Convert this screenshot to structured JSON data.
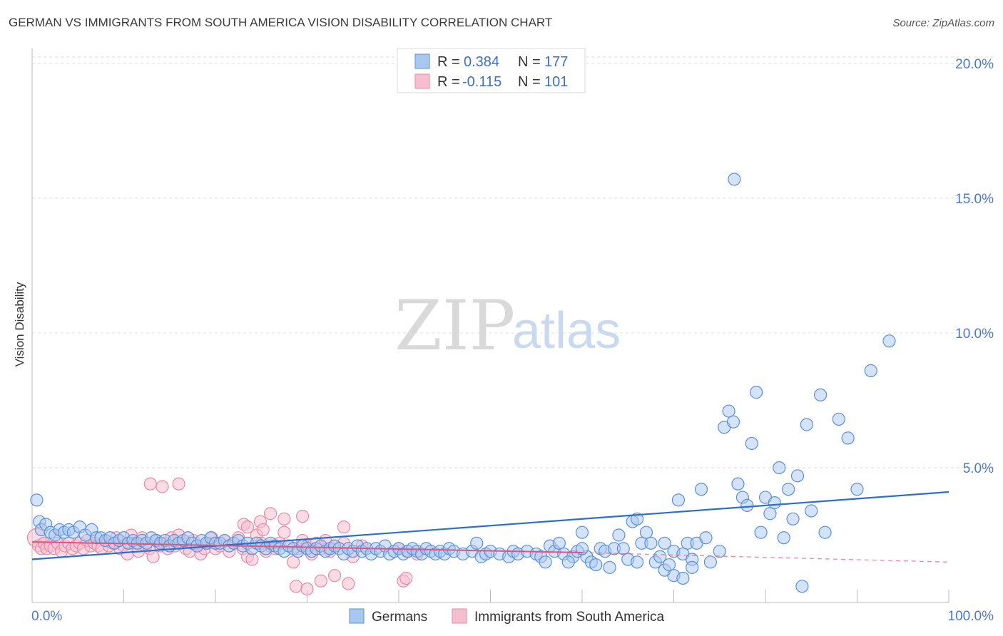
{
  "header": {
    "title": "GERMAN VS IMMIGRANTS FROM SOUTH AMERICA VISION DISABILITY CORRELATION CHART",
    "source": "Source: ZipAtlas.com"
  },
  "watermark": {
    "zip": "ZIP",
    "atlas": "atlas"
  },
  "legend_top": [
    {
      "r_label": "R =",
      "r_value": "0.384",
      "n_label": "N =",
      "n_value": "177"
    },
    {
      "r_label": "R =",
      "r_value": "-0.115",
      "n_label": "N =",
      "n_value": "101"
    }
  ],
  "legend_bottom": [
    "Germans",
    "Immigrants from South America"
  ],
  "colors": {
    "german_fill": "#a9c8f0",
    "german_stroke": "#5b8fd8",
    "german_line": "#2a6fcf",
    "sa_fill": "#f6bfd0",
    "sa_stroke": "#e58aa8",
    "sa_line": "#e0557f",
    "grid": "#dcdcdc"
  },
  "chart_data": {
    "type": "scatter",
    "title": "GERMAN VS IMMIGRANTS FROM SOUTH AMERICA VISION DISABILITY CORRELATION CHART",
    "xlabel": "",
    "ylabel": "Vision Disability",
    "xlim": [
      0,
      100
    ],
    "ylim": [
      0,
      20.5
    ],
    "x_tick_labels": [
      "0.0%",
      "100.0%"
    ],
    "y_ticks": [
      5,
      10,
      15,
      20
    ],
    "y_tick_labels": [
      "5.0%",
      "10.0%",
      "15.0%",
      "20.0%"
    ],
    "grid": true,
    "legend_position": "top-center",
    "series": [
      {
        "name": "Germans",
        "r": 0.384,
        "n": 177,
        "trend": {
          "x": [
            0,
            100
          ],
          "y": [
            1.6,
            4.1
          ]
        },
        "points": [
          [
            0.5,
            3.8
          ],
          [
            0.8,
            3.0
          ],
          [
            1.0,
            2.7
          ],
          [
            1.5,
            2.9
          ],
          [
            2,
            2.6
          ],
          [
            2.5,
            2.5
          ],
          [
            3,
            2.7
          ],
          [
            3.5,
            2.6
          ],
          [
            4,
            2.7
          ],
          [
            4.5,
            2.6
          ],
          [
            5.2,
            2.8
          ],
          [
            5.8,
            2.5
          ],
          [
            6.5,
            2.7
          ],
          [
            7.0,
            2.4
          ],
          [
            7.5,
            2.4
          ],
          [
            8,
            2.3
          ],
          [
            8.5,
            2.4
          ],
          [
            9,
            2.2
          ],
          [
            9.5,
            2.3
          ],
          [
            10,
            2.4
          ],
          [
            10.5,
            2.2
          ],
          [
            11,
            2.3
          ],
          [
            11.5,
            2.2
          ],
          [
            12,
            2.3
          ],
          [
            12.5,
            2.2
          ],
          [
            13,
            2.4
          ],
          [
            13.5,
            2.3
          ],
          [
            14,
            2.2
          ],
          [
            14.5,
            2.3
          ],
          [
            15,
            2.1
          ],
          [
            15.5,
            2.3
          ],
          [
            16,
            2.2
          ],
          [
            16.5,
            2.3
          ],
          [
            17,
            2.4
          ],
          [
            17.5,
            2.2
          ],
          [
            18,
            2.1
          ],
          [
            18.5,
            2.3
          ],
          [
            19,
            2.2
          ],
          [
            19.5,
            2.4
          ],
          [
            20,
            2.2
          ],
          [
            20.5,
            2.2
          ],
          [
            21,
            2.3
          ],
          [
            21.5,
            2.1
          ],
          [
            22,
            2.2
          ],
          [
            22.5,
            2.3
          ],
          [
            23,
            2.1
          ],
          [
            23.5,
            2.2
          ],
          [
            24,
            2.0
          ],
          [
            24.5,
            2.2
          ],
          [
            25,
            2.1
          ],
          [
            25.5,
            2.0
          ],
          [
            26,
            2.2
          ],
          [
            26.5,
            2.1
          ],
          [
            27,
            2.0
          ],
          [
            27.5,
            1.9
          ],
          [
            28,
            2.1
          ],
          [
            28.5,
            2.0
          ],
          [
            29,
            1.9
          ],
          [
            29.5,
            2.1
          ],
          [
            30,
            2.0
          ],
          [
            30.5,
            1.9
          ],
          [
            31,
            2.0
          ],
          [
            31.5,
            2.1
          ],
          [
            32,
            1.9
          ],
          [
            32.5,
            2.0
          ],
          [
            33,
            2.1
          ],
          [
            33.5,
            2.0
          ],
          [
            34,
            1.8
          ],
          [
            34.5,
            2.0
          ],
          [
            35,
            1.9
          ],
          [
            35.5,
            2.1
          ],
          [
            36,
            1.9
          ],
          [
            36.5,
            2.0
          ],
          [
            37,
            1.8
          ],
          [
            37.5,
            2.0
          ],
          [
            38,
            1.9
          ],
          [
            38.5,
            2.1
          ],
          [
            39,
            1.8
          ],
          [
            39.5,
            1.9
          ],
          [
            40,
            2.0
          ],
          [
            40.5,
            1.8
          ],
          [
            41,
            1.9
          ],
          [
            41.5,
            2.0
          ],
          [
            42,
            1.9
          ],
          [
            42.5,
            1.8
          ],
          [
            43,
            2.0
          ],
          [
            43.5,
            1.9
          ],
          [
            44,
            1.8
          ],
          [
            44.5,
            1.9
          ],
          [
            45,
            1.8
          ],
          [
            45.5,
            2.0
          ],
          [
            46,
            1.9
          ],
          [
            47,
            1.8
          ],
          [
            48,
            1.9
          ],
          [
            48.5,
            2.2
          ],
          [
            49,
            1.7
          ],
          [
            49.5,
            1.8
          ],
          [
            50,
            1.9
          ],
          [
            51,
            1.8
          ],
          [
            52,
            1.7
          ],
          [
            52.5,
            1.9
          ],
          [
            53,
            1.8
          ],
          [
            54,
            1.9
          ],
          [
            55,
            1.8
          ],
          [
            55.5,
            1.7
          ],
          [
            56,
            1.5
          ],
          [
            56.5,
            2.1
          ],
          [
            57,
            1.9
          ],
          [
            57.5,
            2.2
          ],
          [
            58,
            1.8
          ],
          [
            59,
            1.7
          ],
          [
            59.5,
            1.9
          ],
          [
            60,
            2.6
          ],
          [
            60.5,
            1.7
          ],
          [
            61,
            1.5
          ],
          [
            61.5,
            1.4
          ],
          [
            62,
            2.0
          ],
          [
            62.5,
            1.9
          ],
          [
            63,
            1.3
          ],
          [
            63.5,
            2.0
          ],
          [
            64,
            2.5
          ],
          [
            64.5,
            2.0
          ],
          [
            65,
            1.6
          ],
          [
            65.5,
            3.0
          ],
          [
            66,
            3.1
          ],
          [
            66.5,
            2.2
          ],
          [
            67,
            2.6
          ],
          [
            68,
            1.5
          ],
          [
            68.5,
            1.7
          ],
          [
            69,
            1.2
          ],
          [
            69.5,
            1.4
          ],
          [
            70,
            1.9
          ],
          [
            70.5,
            3.8
          ],
          [
            71,
            1.8
          ],
          [
            71.5,
            2.2
          ],
          [
            72,
            1.6
          ],
          [
            72.5,
            2.2
          ],
          [
            73,
            4.2
          ],
          [
            73.5,
            2.4
          ],
          [
            74,
            1.5
          ],
          [
            75,
            1.9
          ],
          [
            75.5,
            6.5
          ],
          [
            76,
            7.1
          ],
          [
            76.5,
            6.7
          ],
          [
            77,
            4.4
          ],
          [
            77.5,
            3.9
          ],
          [
            78,
            3.6
          ],
          [
            78.5,
            5.9
          ],
          [
            79,
            7.8
          ],
          [
            79.5,
            2.6
          ],
          [
            80,
            3.9
          ],
          [
            80.5,
            3.3
          ],
          [
            81,
            3.7
          ],
          [
            81.5,
            5.0
          ],
          [
            82,
            2.4
          ],
          [
            82.5,
            4.2
          ],
          [
            83,
            3.1
          ],
          [
            83.5,
            4.7
          ],
          [
            84,
            0.6
          ],
          [
            84.5,
            6.6
          ],
          [
            85,
            3.4
          ],
          [
            86,
            7.7
          ],
          [
            88,
            6.8
          ],
          [
            89,
            6.1
          ],
          [
            90,
            4.2
          ],
          [
            91.5,
            8.6
          ],
          [
            93.5,
            9.7
          ],
          [
            76.6,
            15.7
          ],
          [
            86.5,
            2.6
          ],
          [
            69,
            2.2
          ],
          [
            70.0,
            1.0
          ],
          [
            71.0,
            0.9
          ],
          [
            72.0,
            1.3
          ],
          [
            66.0,
            1.5
          ],
          [
            67.5,
            2.2
          ],
          [
            58.5,
            1.5
          ],
          [
            60.0,
            2.0
          ]
        ]
      },
      {
        "name": "Immigrants from South America",
        "r": -0.115,
        "n": 101,
        "trend": {
          "x": [
            0,
            60,
            100
          ],
          "y": [
            2.25,
            1.85,
            1.5
          ]
        },
        "points": [
          [
            0.5,
            2.4
          ],
          [
            0.7,
            2.1
          ],
          [
            1.0,
            2.0
          ],
          [
            1.3,
            2.2
          ],
          [
            1.6,
            2.0
          ],
          [
            2.0,
            2.1
          ],
          [
            2.4,
            2.0
          ],
          [
            2.8,
            2.2
          ],
          [
            3.2,
            1.9
          ],
          [
            3.6,
            2.1
          ],
          [
            4.0,
            2.2
          ],
          [
            4.4,
            2.0
          ],
          [
            4.8,
            2.1
          ],
          [
            5.2,
            2.2
          ],
          [
            5.6,
            2.0
          ],
          [
            6.0,
            2.3
          ],
          [
            6.4,
            2.1
          ],
          [
            6.8,
            2.2
          ],
          [
            7.2,
            2.1
          ],
          [
            7.6,
            2.0
          ],
          [
            8.0,
            2.3
          ],
          [
            8.4,
            2.1
          ],
          [
            8.8,
            2.2
          ],
          [
            9.2,
            2.4
          ],
          [
            9.6,
            2.0
          ],
          [
            10.0,
            2.1
          ],
          [
            10.4,
            1.8
          ],
          [
            10.8,
            2.5
          ],
          [
            11.2,
            2.2
          ],
          [
            11.6,
            1.9
          ],
          [
            12.0,
            2.4
          ],
          [
            12.4,
            2.1
          ],
          [
            12.8,
            2.0
          ],
          [
            13.2,
            1.7
          ],
          [
            13.6,
            2.3
          ],
          [
            14.0,
            2.1
          ],
          [
            14.4,
            2.2
          ],
          [
            14.8,
            2.0
          ],
          [
            15.2,
            2.4
          ],
          [
            15.6,
            2.1
          ],
          [
            16.0,
            2.5
          ],
          [
            16.4,
            2.2
          ],
          [
            16.8,
            2.0
          ],
          [
            17.2,
            1.9
          ],
          [
            17.6,
            2.3
          ],
          [
            18.0,
            2.1
          ],
          [
            18.4,
            1.8
          ],
          [
            18.8,
            2.0
          ],
          [
            19.2,
            2.2
          ],
          [
            19.6,
            2.4
          ],
          [
            20.0,
            2.0
          ],
          [
            20.5,
            2.1
          ],
          [
            21.0,
            2.3
          ],
          [
            21.5,
            1.9
          ],
          [
            22.0,
            2.2
          ],
          [
            22.5,
            2.4
          ],
          [
            23.0,
            2.0
          ],
          [
            23.5,
            1.7
          ],
          [
            24.0,
            1.6
          ],
          [
            24.5,
            2.5
          ],
          [
            25.0,
            2.2
          ],
          [
            25.5,
            1.9
          ],
          [
            26.0,
            2.1
          ],
          [
            26.5,
            2.0
          ],
          [
            27.0,
            2.2
          ],
          [
            27.5,
            2.6
          ],
          [
            28.0,
            2.1
          ],
          [
            28.5,
            1.5
          ],
          [
            29.0,
            2.0
          ],
          [
            29.5,
            2.3
          ],
          [
            30.0,
            2.1
          ],
          [
            30.5,
            1.8
          ],
          [
            31.0,
            2.2
          ],
          [
            31.5,
            2.0
          ],
          [
            32.0,
            2.3
          ],
          [
            32.5,
            1.9
          ],
          [
            33.0,
            2.1
          ],
          [
            34.0,
            2.2
          ],
          [
            35.0,
            1.7
          ],
          [
            36.0,
            2.1
          ],
          [
            12.9,
            4.4
          ],
          [
            14.2,
            4.3
          ],
          [
            16.0,
            4.4
          ],
          [
            23.1,
            2.9
          ],
          [
            24.9,
            3.0
          ],
          [
            25.2,
            2.7
          ],
          [
            26.0,
            3.3
          ],
          [
            27.5,
            3.1
          ],
          [
            23.5,
            2.8
          ],
          [
            28.8,
            0.6
          ],
          [
            30.0,
            0.5
          ],
          [
            31.5,
            0.8
          ],
          [
            33.0,
            1.0
          ],
          [
            34.5,
            0.7
          ],
          [
            40.5,
            0.8
          ],
          [
            40.8,
            0.9
          ],
          [
            42.0,
            1.8
          ],
          [
            29.5,
            3.2
          ],
          [
            34.0,
            2.8
          ],
          [
            40.0,
            2.0
          ],
          [
            40.9,
            1.9
          ]
        ]
      }
    ]
  }
}
